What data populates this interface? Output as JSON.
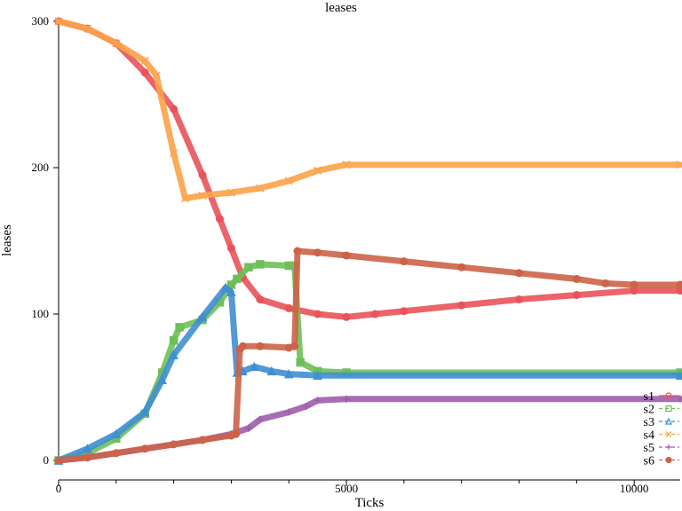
{
  "chart_data": {
    "type": "line",
    "title": "leases",
    "xlabel": "Ticks",
    "ylabel": "leases",
    "xlim": [
      0,
      10800
    ],
    "ylim": [
      0,
      300
    ],
    "x_ticks": [
      0,
      5000,
      10000
    ],
    "x_tick_labels": [
      "0",
      "5000",
      "10000"
    ],
    "y_ticks": [
      0,
      100,
      200,
      300
    ],
    "y_tick_labels": [
      "0",
      "100",
      "200",
      "300"
    ],
    "grid": false,
    "legend_position": "bottom-right",
    "series": [
      {
        "name": "s1",
        "color": "#e8535a",
        "marker": "circle",
        "x": [
          0,
          500,
          1000,
          1500,
          2000,
          2500,
          2800,
          3000,
          3200,
          3500,
          4000,
          4500,
          5000,
          5500,
          6000,
          7000,
          8000,
          9000,
          10000,
          10800
        ],
        "y": [
          300,
          295,
          285,
          265,
          240,
          195,
          165,
          145,
          125,
          110,
          104,
          100,
          98,
          100,
          102,
          106,
          110,
          113,
          116,
          116
        ]
      },
      {
        "name": "s2",
        "color": "#6dbf5a",
        "marker": "square",
        "x": [
          0,
          500,
          1000,
          1500,
          1800,
          2000,
          2100,
          2500,
          2800,
          3000,
          3100,
          3300,
          3500,
          4000,
          4100,
          4200,
          4500,
          5000,
          10800
        ],
        "y": [
          0,
          5,
          15,
          32,
          60,
          82,
          91,
          96,
          108,
          120,
          124,
          132,
          134,
          133,
          133,
          67,
          61,
          60,
          60
        ]
      },
      {
        "name": "s3",
        "color": "#3f8fd2",
        "marker": "triangle",
        "x": [
          0,
          500,
          1000,
          1500,
          1800,
          2000,
          2500,
          2900,
          3000,
          3100,
          3200,
          3400,
          3700,
          4000,
          4500,
          10800
        ],
        "y": [
          0,
          8,
          18,
          33,
          55,
          72,
          98,
          118,
          115,
          60,
          61,
          64,
          61,
          59,
          58,
          58
        ]
      },
      {
        "name": "s4",
        "color": "#fba349",
        "marker": "x",
        "x": [
          0,
          500,
          1000,
          1500,
          1700,
          2000,
          2200,
          2500,
          3000,
          3500,
          4000,
          4500,
          5000,
          10800
        ],
        "y": [
          300,
          295,
          285,
          273,
          263,
          210,
          179,
          181,
          183,
          186,
          191,
          198,
          202,
          202
        ]
      },
      {
        "name": "s5",
        "color": "#9d5ead",
        "marker": "plus",
        "x": [
          0,
          500,
          1000,
          1500,
          2000,
          2500,
          3000,
          3300,
          3500,
          4000,
          4300,
          4500,
          5000,
          10800
        ],
        "y": [
          0,
          2,
          5,
          8,
          11,
          14,
          18,
          22,
          28,
          33,
          37,
          41,
          42,
          42
        ]
      },
      {
        "name": "s6",
        "color": "#cc6348",
        "marker": "dot",
        "x": [
          0,
          500,
          1000,
          1500,
          2000,
          2500,
          3000,
          3080,
          3150,
          3200,
          3500,
          4000,
          4100,
          4150,
          4500,
          5000,
          6000,
          7000,
          8000,
          9000,
          9500,
          10000,
          10800
        ],
        "y": [
          0,
          2,
          5,
          8,
          11,
          14,
          17,
          18,
          76,
          78,
          78,
          77,
          78,
          143,
          142,
          140,
          136,
          132,
          128,
          124,
          121,
          120,
          120
        ]
      }
    ]
  }
}
